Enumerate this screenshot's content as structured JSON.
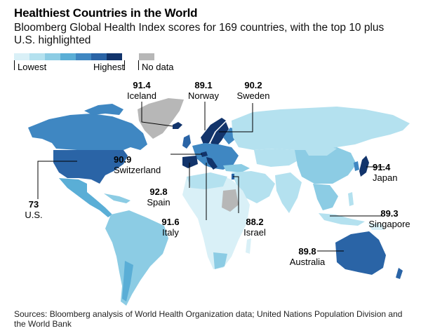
{
  "header": {
    "title": "Healthiest Countries in the World",
    "subtitle": "Bloomberg Global Health Index scores for 169 countries, with the top 10 plus U.S. highlighted"
  },
  "legend": {
    "lowest_label": "Lowest",
    "highest_label": "Highest",
    "no_data_label": "No data",
    "colors": [
      "#d9f0f7",
      "#b4e1ef",
      "#8ccce4",
      "#5aaed6",
      "#3f87c2",
      "#2a64a6",
      "#12346b"
    ],
    "no_data_color": "#b7b7b7"
  },
  "countries": [
    {
      "name": "Iceland",
      "score": "91.4"
    },
    {
      "name": "Norway",
      "score": "89.1"
    },
    {
      "name": "Sweden",
      "score": "90.2"
    },
    {
      "name": "Switzerland",
      "score": "90.9"
    },
    {
      "name": "Japan",
      "score": "91.4"
    },
    {
      "name": "Spain",
      "score": "92.8"
    },
    {
      "name": "U.S.",
      "score": "73"
    },
    {
      "name": "Italy",
      "score": "91.6"
    },
    {
      "name": "Israel",
      "score": "88.2"
    },
    {
      "name": "Singapore",
      "score": "89.3"
    },
    {
      "name": "Australia",
      "score": "89.8"
    }
  ],
  "source": "Sources: Bloomberg analysis of World Health Organization data; United Nations Population Division and the World Bank"
}
